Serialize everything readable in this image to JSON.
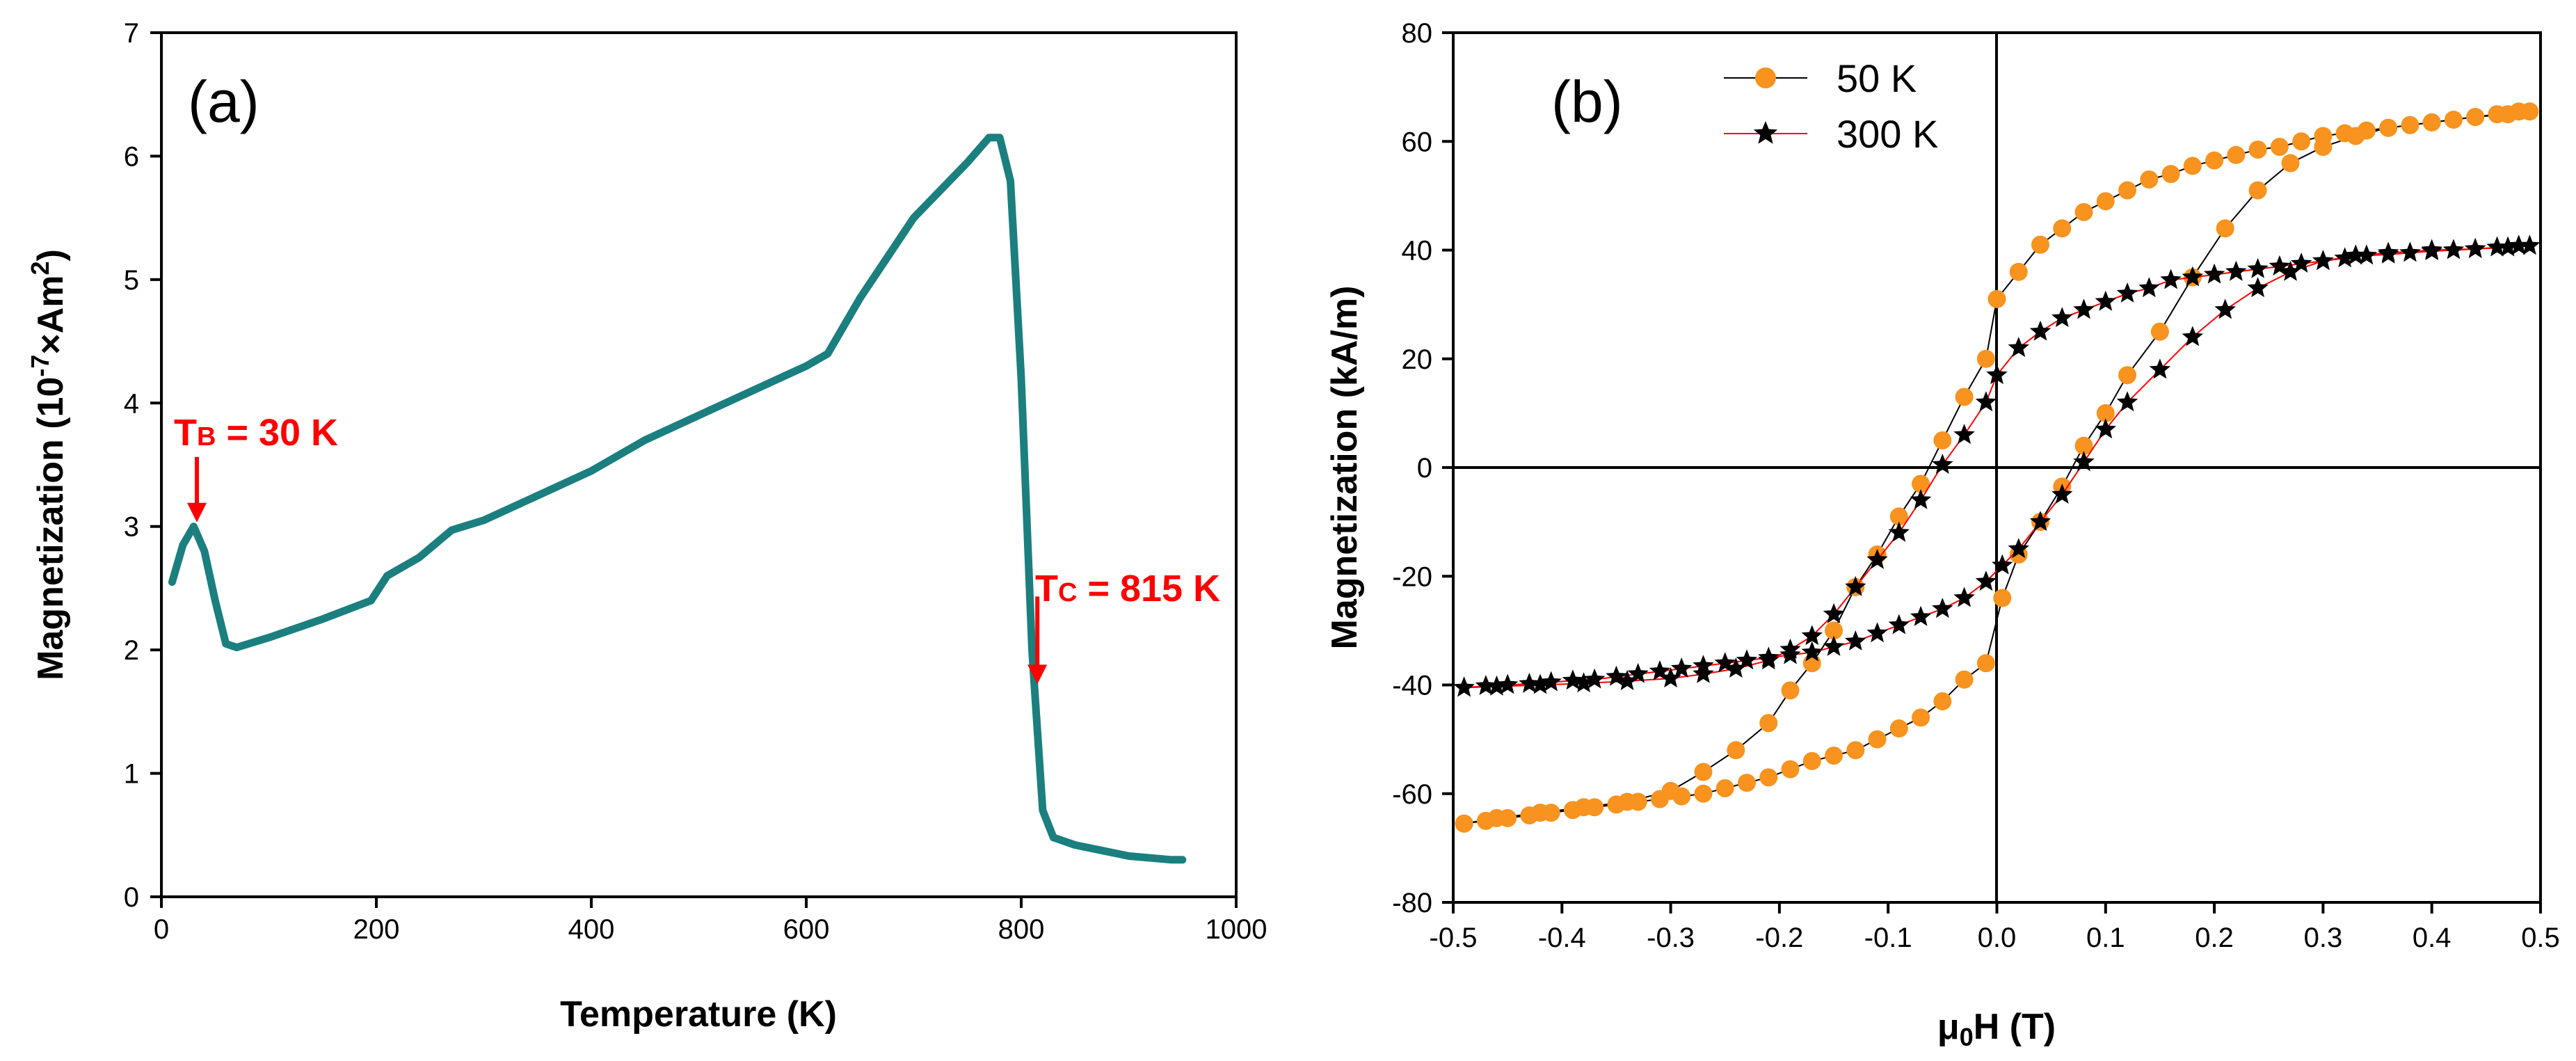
{
  "chart_data": [
    {
      "type": "line",
      "panel_label": "(a)",
      "xlabel": "Temperature (K)",
      "ylabel_main": "Magnetization (10",
      "ylabel_exp": "-7",
      "ylabel_mid": "×Am",
      "ylabel_exp2": "2",
      "ylabel_end": ")",
      "xlim": [
        0,
        1000
      ],
      "ylim": [
        0,
        7
      ],
      "xticks": [
        "0",
        "200",
        "400",
        "600",
        "800",
        "1000"
      ],
      "yticks": [
        "0",
        "1",
        "2",
        "3",
        "4",
        "5",
        "6",
        "7"
      ],
      "color": "#1b7f7f",
      "series": [
        {
          "name": "M(T)",
          "x": [
            10,
            20,
            30,
            40,
            50,
            60,
            70,
            100,
            150,
            195,
            210,
            240,
            270,
            300,
            350,
            400,
            450,
            500,
            550,
            600,
            620,
            650,
            700,
            750,
            770,
            780,
            790,
            800,
            810,
            820,
            830,
            850,
            900,
            940,
            950
          ],
          "y": [
            2.55,
            2.85,
            3.0,
            2.8,
            2.4,
            2.05,
            2.02,
            2.1,
            2.25,
            2.4,
            2.6,
            2.75,
            2.97,
            3.05,
            3.25,
            3.45,
            3.7,
            3.9,
            4.1,
            4.3,
            4.4,
            4.85,
            5.5,
            5.95,
            6.15,
            6.15,
            5.8,
            4.2,
            2.0,
            0.7,
            0.48,
            0.42,
            0.33,
            0.3,
            0.3
          ]
        }
      ],
      "annotations": [
        {
          "label_main": "T",
          "label_sub": "B",
          "label_rest": " = 30 K",
          "x": 33,
          "y": 3.0,
          "color": "#ff0000"
        },
        {
          "label_main": "T",
          "label_sub": "C",
          "label_rest": " = 815 K",
          "x": 815,
          "y": 1.7,
          "color": "#ff0000"
        }
      ]
    },
    {
      "type": "scatter",
      "panel_label": "(b)",
      "xlabel_pre": "μ",
      "xlabel_sub": "0",
      "xlabel_rest": "H (T)",
      "ylabel": "Magnetization (kA/m)",
      "xlim": [
        -0.5,
        0.5
      ],
      "ylim": [
        -80,
        80
      ],
      "xticks": [
        "-0.5",
        "-0.4",
        "-0.3",
        "-0.2",
        "-0.1",
        "0.0",
        "0.1",
        "0.2",
        "0.3",
        "0.4",
        "0.5"
      ],
      "yticks": [
        "-80",
        "-60",
        "-40",
        "-20",
        "0",
        "20",
        "40",
        "60",
        "80"
      ],
      "legend_position": "top-left",
      "series": [
        {
          "name": "50 K",
          "marker": "circle",
          "marker_color": "#f7931e",
          "line_color": "#000000",
          "x": [
            -0.49,
            -0.47,
            -0.45,
            -0.43,
            -0.41,
            -0.39,
            -0.37,
            -0.35,
            -0.33,
            -0.31,
            -0.29,
            -0.27,
            -0.25,
            -0.23,
            -0.21,
            -0.19,
            -0.17,
            -0.15,
            -0.13,
            -0.11,
            -0.09,
            -0.07,
            -0.05,
            -0.03,
            -0.01,
            0.005,
            0.02,
            0.04,
            0.06,
            0.08,
            0.1,
            0.12,
            0.15,
            0.18,
            0.21,
            0.24,
            0.27,
            0.3,
            0.33,
            0.36,
            0.4,
            0.44,
            0.47,
            0.49
          ],
          "y": [
            -65.5,
            -65,
            -64.5,
            -64,
            -63.5,
            -63,
            -62.5,
            -62,
            -61.5,
            -61,
            -60.5,
            -60,
            -59,
            -58,
            -57,
            -55.5,
            -54,
            -53,
            -52,
            -50,
            -48,
            -46,
            -43,
            -39,
            -36,
            -24,
            -16,
            -10,
            -3.5,
            4,
            10,
            17,
            25,
            35,
            44,
            51,
            56,
            59,
            61,
            62.5,
            63.5,
            64.5,
            65,
            65.5
          ],
          "y2x": [
            0.48,
            0.46,
            0.44,
            0.42,
            0.4,
            0.38,
            0.36,
            0.34,
            0.32,
            0.3,
            0.28,
            0.26,
            0.24,
            0.22,
            0.2,
            0.18,
            0.16,
            0.14,
            0.12,
            0.1,
            0.08,
            0.06,
            0.04,
            0.02,
            0.0,
            -0.01,
            -0.03,
            -0.05,
            -0.07,
            -0.09,
            -0.11,
            -0.13,
            -0.15,
            -0.17,
            -0.19,
            -0.21,
            -0.24,
            -0.27,
            -0.3,
            -0.34,
            -0.38,
            -0.42,
            -0.46,
            -0.49
          ],
          "y2": [
            65.5,
            65,
            64.5,
            64,
            63.5,
            63,
            62.5,
            62,
            61.5,
            61,
            60,
            59,
            58.5,
            57.5,
            56.5,
            55.5,
            54,
            53,
            51,
            49,
            47,
            44,
            41,
            36,
            31,
            20,
            13,
            5,
            -3,
            -9,
            -16,
            -22,
            -30,
            -36,
            -41,
            -47,
            -52,
            -56,
            -59.5,
            -61.5,
            -62.5,
            -63.5,
            -64.5,
            -65.5
          ]
        },
        {
          "name": "300 K",
          "marker": "star",
          "marker_color": "#000000",
          "line_color": "#ff0000",
          "x": [
            -0.49,
            -0.47,
            -0.45,
            -0.43,
            -0.41,
            -0.39,
            -0.37,
            -0.35,
            -0.33,
            -0.31,
            -0.29,
            -0.27,
            -0.25,
            -0.23,
            -0.21,
            -0.19,
            -0.17,
            -0.15,
            -0.13,
            -0.11,
            -0.09,
            -0.07,
            -0.05,
            -0.03,
            -0.01,
            0.005,
            0.02,
            0.04,
            0.06,
            0.08,
            0.1,
            0.12,
            0.15,
            0.18,
            0.21,
            0.24,
            0.27,
            0.3,
            0.33,
            0.36,
            0.4,
            0.44,
            0.47,
            0.49
          ],
          "y": [
            -40.5,
            -40.2,
            -40,
            -39.8,
            -39.5,
            -39.2,
            -39,
            -38.5,
            -38,
            -37.5,
            -37,
            -36.5,
            -36,
            -35.5,
            -35,
            -34.5,
            -34,
            -33,
            -32,
            -30.5,
            -29,
            -27.5,
            -26,
            -24,
            -21,
            -18,
            -15,
            -10,
            -5,
            1,
            7,
            12,
            18,
            24,
            29,
            33,
            36,
            38,
            39,
            39.5,
            40,
            40.2,
            40.5,
            40.8
          ],
          "y2x": [
            0.48,
            0.46,
            0.44,
            0.42,
            0.4,
            0.38,
            0.36,
            0.34,
            0.32,
            0.3,
            0.28,
            0.26,
            0.24,
            0.22,
            0.2,
            0.18,
            0.16,
            0.14,
            0.12,
            0.1,
            0.08,
            0.06,
            0.04,
            0.02,
            0.0,
            -0.01,
            -0.03,
            -0.05,
            -0.07,
            -0.09,
            -0.11,
            -0.13,
            -0.15,
            -0.17,
            -0.19,
            -0.21,
            -0.24,
            -0.27,
            -0.3,
            -0.34,
            -0.38,
            -0.42,
            -0.46,
            -0.49
          ],
          "y2": [
            40.8,
            40.5,
            40.2,
            40,
            39.8,
            39.5,
            39.2,
            39,
            38.5,
            38,
            37.5,
            37,
            36.5,
            36,
            35.5,
            35,
            34.5,
            33,
            32,
            30.5,
            29,
            27.5,
            25,
            22,
            17,
            12,
            6,
            0.5,
            -6,
            -12,
            -17,
            -22,
            -27,
            -31,
            -33.5,
            -35.5,
            -37,
            -38,
            -38.8,
            -39.3,
            -39.7,
            -40,
            -40.3,
            -40.5
          ]
        }
      ]
    }
  ]
}
